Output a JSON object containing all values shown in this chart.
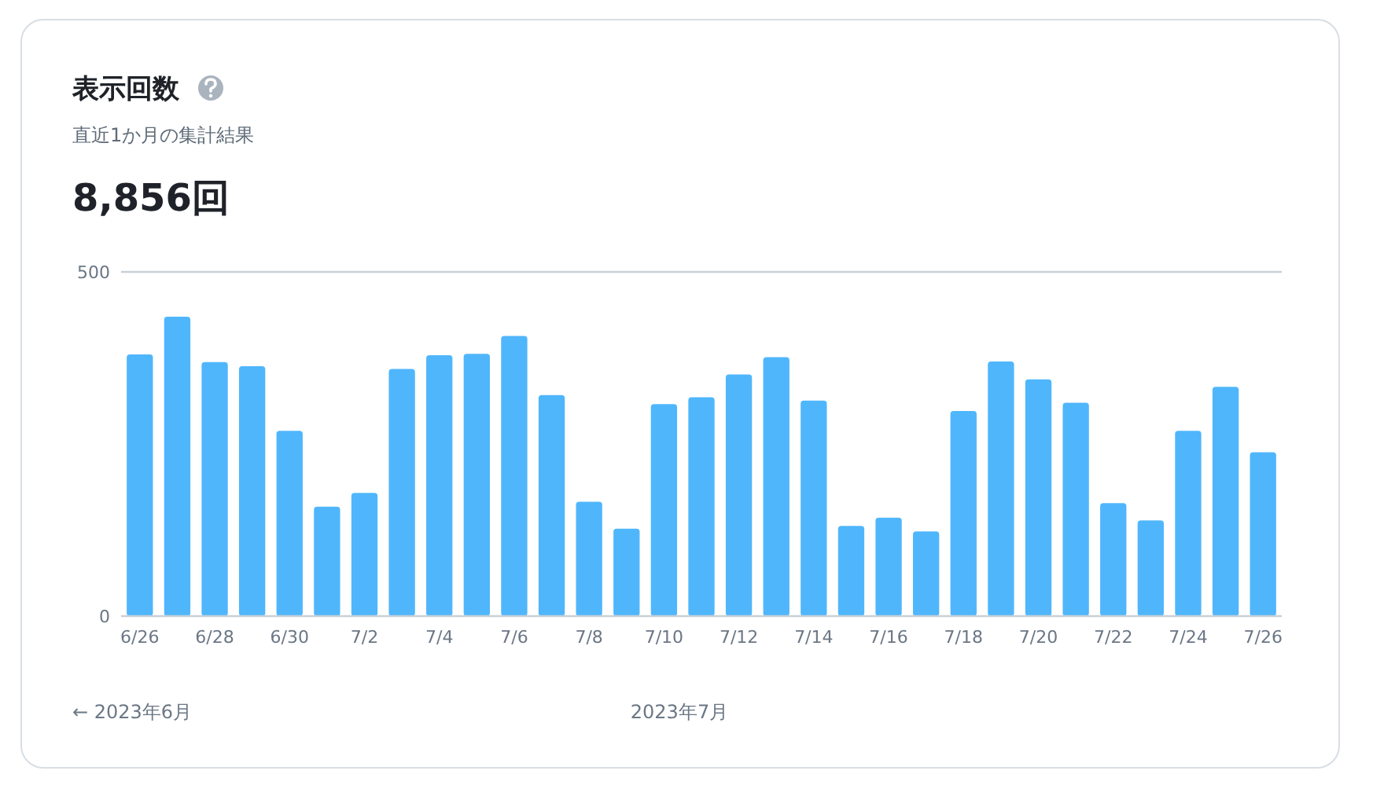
{
  "chart_data": {
    "type": "bar",
    "title": "表示回数",
    "subtitle": "直近1か月の集計結果",
    "annotations": [
      "8,856回",
      "← 2023年6月",
      "2023年7月"
    ],
    "categories": [
      "6/26",
      null,
      "6/28",
      null,
      "6/30",
      null,
      "7/2",
      null,
      "7/4",
      null,
      "7/6",
      null,
      "7/8",
      null,
      "7/10",
      null,
      "7/12",
      null,
      "7/14",
      null,
      "7/16",
      null,
      "7/18",
      null,
      "7/20",
      null,
      "7/22",
      null,
      "7/24",
      null,
      "7/26"
    ],
    "values": [
      380,
      435,
      369,
      363,
      269,
      159,
      179,
      359,
      379,
      381,
      407,
      321,
      166,
      127,
      308,
      318,
      351,
      376,
      313,
      131,
      143,
      123,
      298,
      370,
      344,
      310,
      164,
      139,
      269,
      333,
      238
    ],
    "color": "#4fb6fc",
    "ylim": [
      0,
      500
    ],
    "yticks": [
      0,
      500
    ]
  }
}
